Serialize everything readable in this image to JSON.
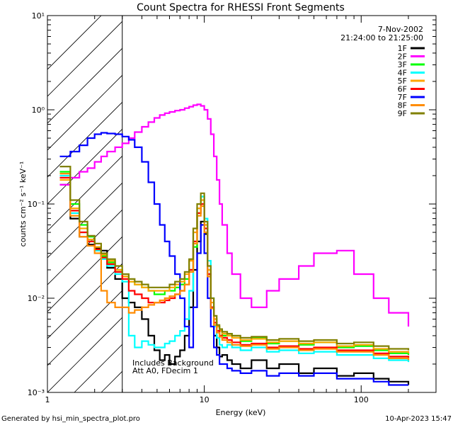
{
  "chart_data": {
    "type": "line",
    "title": "Count Spectra for RHESSI Front Segments",
    "xlabel": "Energy (keV)",
    "ylabel": "counts cm⁻² s⁻¹ keV⁻¹",
    "x_scale": "log",
    "y_scale": "log",
    "xlim": [
      1,
      300
    ],
    "ylim": [
      0.001,
      10
    ],
    "x_ticks": [
      {
        "value": 1,
        "label": "1"
      },
      {
        "value": 10,
        "label": "10"
      },
      {
        "value": 100,
        "label": "100"
      }
    ],
    "y_ticks": [
      {
        "value": 0.001,
        "label": "10⁻³"
      },
      {
        "value": 0.01,
        "label": "10⁻²"
      },
      {
        "value": 0.1,
        "label": "10⁻¹"
      },
      {
        "value": 1,
        "label": "10⁰"
      },
      {
        "value": 10,
        "label": "10¹"
      }
    ],
    "hatched_region_kev": [
      1,
      3
    ],
    "header_lines": [
      "7-Nov-2002",
      "21:24:00 to 21:25:00"
    ],
    "annotations": [
      "Includes Background",
      "Att A0, FDecim 1"
    ],
    "series": [
      {
        "name": "1F",
        "color": "#000000",
        "x": [
          1.2,
          1.4,
          1.6,
          1.8,
          2.0,
          2.2,
          2.4,
          2.7,
          3.0,
          3.3,
          3.6,
          4.0,
          4.4,
          4.8,
          5.2,
          5.6,
          6.0,
          6.5,
          7.0,
          7.5,
          8.0,
          8.5,
          9.0,
          9.5,
          10.0,
          10.5,
          11.0,
          11.5,
          12.0,
          12.5,
          13.0,
          14.0,
          15.0,
          17.0,
          20.0,
          25.0,
          30.0,
          40.0,
          50.0,
          70.0,
          90.0,
          120.0,
          150.0,
          200.0
        ],
        "y": [
          0.16,
          0.07,
          0.045,
          0.037,
          0.034,
          0.032,
          0.021,
          0.016,
          0.01,
          0.009,
          0.008,
          0.006,
          0.004,
          0.0028,
          0.0022,
          0.0025,
          0.002,
          0.0024,
          0.0028,
          0.004,
          0.008,
          0.02,
          0.04,
          0.065,
          0.048,
          0.018,
          0.008,
          0.004,
          0.003,
          0.0024,
          0.0025,
          0.0022,
          0.002,
          0.0018,
          0.0022,
          0.0018,
          0.002,
          0.0016,
          0.0018,
          0.0015,
          0.0016,
          0.0014,
          0.0013,
          0.0012
        ]
      },
      {
        "name": "2F",
        "color": "#ff00ff",
        "x": [
          1.2,
          1.4,
          1.6,
          1.8,
          2.0,
          2.2,
          2.4,
          2.7,
          3.0,
          3.3,
          3.6,
          4.0,
          4.4,
          4.8,
          5.2,
          5.6,
          6.0,
          6.5,
          7.0,
          7.5,
          8.0,
          8.5,
          9.0,
          9.5,
          10.0,
          10.5,
          11.0,
          11.5,
          12.0,
          12.5,
          13.0,
          14.0,
          15.0,
          17.0,
          20.0,
          25.0,
          30.0,
          40.0,
          50.0,
          70.0,
          90.0,
          120.0,
          150.0,
          200.0
        ],
        "y": [
          0.16,
          0.19,
          0.22,
          0.24,
          0.28,
          0.32,
          0.36,
          0.4,
          0.44,
          0.5,
          0.58,
          0.66,
          0.74,
          0.82,
          0.88,
          0.92,
          0.95,
          0.98,
          1.0,
          1.04,
          1.08,
          1.12,
          1.14,
          1.1,
          1.0,
          0.8,
          0.55,
          0.32,
          0.18,
          0.1,
          0.06,
          0.03,
          0.018,
          0.01,
          0.008,
          0.012,
          0.016,
          0.022,
          0.03,
          0.032,
          0.018,
          0.01,
          0.007,
          0.005
        ]
      },
      {
        "name": "3F",
        "color": "#00ff00",
        "x": [
          1.2,
          1.4,
          1.6,
          1.8,
          2.0,
          2.2,
          2.4,
          2.7,
          3.0,
          3.3,
          3.6,
          4.0,
          4.4,
          4.8,
          5.2,
          5.6,
          6.0,
          6.5,
          7.0,
          7.5,
          8.0,
          8.5,
          9.0,
          9.5,
          10.0,
          10.5,
          11.0,
          11.5,
          12.0,
          12.5,
          13.0,
          14.0,
          15.0,
          17.0,
          20.0,
          25.0,
          30.0,
          40.0,
          50.0,
          70.0,
          90.0,
          120.0,
          150.0,
          200.0
        ],
        "y": [
          0.22,
          0.1,
          0.06,
          0.045,
          0.035,
          0.028,
          0.024,
          0.02,
          0.017,
          0.015,
          0.014,
          0.013,
          0.012,
          0.011,
          0.011,
          0.012,
          0.012,
          0.013,
          0.014,
          0.016,
          0.02,
          0.035,
          0.08,
          0.12,
          0.06,
          0.02,
          0.008,
          0.006,
          0.005,
          0.0045,
          0.004,
          0.0042,
          0.0038,
          0.0035,
          0.0038,
          0.0033,
          0.0035,
          0.0032,
          0.0034,
          0.003,
          0.0031,
          0.0028,
          0.0026,
          0.0025
        ]
      },
      {
        "name": "4F",
        "color": "#00ffff",
        "x": [
          1.2,
          1.4,
          1.6,
          1.8,
          2.0,
          2.2,
          2.4,
          2.7,
          3.0,
          3.3,
          3.6,
          4.0,
          4.4,
          4.8,
          5.2,
          5.6,
          6.0,
          6.5,
          7.0,
          7.5,
          8.0,
          8.5,
          9.0,
          9.5,
          10.0,
          10.5,
          11.0,
          11.5,
          12.0,
          12.5,
          13.0,
          14.0,
          15.0,
          17.0,
          20.0,
          25.0,
          30.0,
          40.0,
          50.0,
          70.0,
          90.0,
          120.0,
          150.0,
          200.0
        ],
        "y": [
          0.2,
          0.08,
          0.05,
          0.04,
          0.032,
          0.026,
          0.022,
          0.018,
          0.015,
          0.004,
          0.003,
          0.0035,
          0.0032,
          0.003,
          0.003,
          0.0033,
          0.0035,
          0.004,
          0.0045,
          0.006,
          0.012,
          0.04,
          0.09,
          0.12,
          0.07,
          0.025,
          0.01,
          0.005,
          0.0038,
          0.0032,
          0.003,
          0.0032,
          0.003,
          0.0028,
          0.003,
          0.0027,
          0.0028,
          0.0026,
          0.0027,
          0.0025,
          0.0025,
          0.0023,
          0.0022,
          0.0021
        ]
      },
      {
        "name": "5F",
        "color": "#ffa500",
        "x": [
          1.2,
          1.4,
          1.6,
          1.8,
          2.0,
          2.2,
          2.4,
          2.7,
          3.0,
          3.3,
          3.6,
          4.0,
          4.4,
          4.8,
          5.2,
          5.6,
          6.0,
          6.5,
          7.0,
          7.5,
          8.0,
          8.5,
          9.0,
          9.5,
          10.0,
          10.5,
          11.0,
          11.5,
          12.0,
          12.5,
          13.0,
          14.0,
          15.0,
          17.0,
          20.0,
          25.0,
          30.0,
          40.0,
          50.0,
          70.0,
          90.0,
          120.0,
          150.0,
          200.0
        ],
        "y": [
          0.18,
          0.09,
          0.055,
          0.042,
          0.035,
          0.029,
          0.025,
          0.02,
          0.017,
          0.015,
          0.014,
          0.013,
          0.012,
          0.012,
          0.012,
          0.012,
          0.013,
          0.014,
          0.015,
          0.018,
          0.025,
          0.05,
          0.09,
          0.11,
          0.06,
          0.02,
          0.009,
          0.006,
          0.005,
          0.0045,
          0.0042,
          0.004,
          0.0038,
          0.0036,
          0.0037,
          0.0034,
          0.0035,
          0.0033,
          0.0034,
          0.0031,
          0.0032,
          0.0029,
          0.0027,
          0.0026
        ]
      },
      {
        "name": "6F",
        "color": "#ff0000",
        "x": [
          1.2,
          1.4,
          1.6,
          1.8,
          2.0,
          2.2,
          2.4,
          2.7,
          3.0,
          3.3,
          3.6,
          4.0,
          4.4,
          4.8,
          5.2,
          5.6,
          6.0,
          6.5,
          7.0,
          7.5,
          8.0,
          8.5,
          9.0,
          9.5,
          10.0,
          10.5,
          11.0,
          11.5,
          12.0,
          12.5,
          13.0,
          14.0,
          15.0,
          17.0,
          20.0,
          25.0,
          30.0,
          40.0,
          50.0,
          70.0,
          90.0,
          120.0,
          150.0,
          200.0
        ],
        "y": [
          0.19,
          0.085,
          0.05,
          0.04,
          0.033,
          0.027,
          0.023,
          0.019,
          0.016,
          0.012,
          0.011,
          0.01,
          0.009,
          0.009,
          0.009,
          0.0095,
          0.01,
          0.011,
          0.012,
          0.014,
          0.02,
          0.04,
          0.08,
          0.1,
          0.055,
          0.018,
          0.008,
          0.0055,
          0.0045,
          0.004,
          0.0038,
          0.0036,
          0.0034,
          0.0032,
          0.0033,
          0.003,
          0.0031,
          0.0029,
          0.003,
          0.0028,
          0.0028,
          0.0026,
          0.0024,
          0.0023
        ]
      },
      {
        "name": "7F",
        "color": "#0000ff",
        "x": [
          1.2,
          1.4,
          1.6,
          1.8,
          2.0,
          2.2,
          2.4,
          2.7,
          3.0,
          3.3,
          3.6,
          4.0,
          4.4,
          4.8,
          5.2,
          5.6,
          6.0,
          6.5,
          7.0,
          7.5,
          8.0,
          8.5,
          9.0,
          9.5,
          10.0,
          10.5,
          11.0,
          11.5,
          12.0,
          12.5,
          13.0,
          14.0,
          15.0,
          17.0,
          20.0,
          25.0,
          30.0,
          40.0,
          50.0,
          70.0,
          90.0,
          120.0,
          150.0,
          200.0
        ],
        "y": [
          0.32,
          0.36,
          0.42,
          0.5,
          0.55,
          0.57,
          0.56,
          0.55,
          0.52,
          0.48,
          0.4,
          0.28,
          0.17,
          0.1,
          0.06,
          0.04,
          0.028,
          0.018,
          0.01,
          0.005,
          0.003,
          0.008,
          0.03,
          0.06,
          0.03,
          0.01,
          0.005,
          0.003,
          0.0025,
          0.002,
          0.002,
          0.0018,
          0.0017,
          0.0016,
          0.0017,
          0.0015,
          0.0016,
          0.0015,
          0.0016,
          0.0014,
          0.0014,
          0.0013,
          0.0012,
          0.0012
        ]
      },
      {
        "name": "8F",
        "color": "#ff8c00",
        "x": [
          1.2,
          1.4,
          1.6,
          1.8,
          2.0,
          2.2,
          2.4,
          2.7,
          3.0,
          3.3,
          3.6,
          4.0,
          4.4,
          4.8,
          5.2,
          5.6,
          6.0,
          6.5,
          7.0,
          7.5,
          8.0,
          8.5,
          9.0,
          9.5,
          10.0,
          10.5,
          11.0,
          11.5,
          12.0,
          12.5,
          13.0,
          14.0,
          15.0,
          17.0,
          20.0,
          25.0,
          30.0,
          40.0,
          50.0,
          70.0,
          90.0,
          120.0,
          150.0,
          200.0
        ],
        "y": [
          0.21,
          0.075,
          0.045,
          0.036,
          0.03,
          0.012,
          0.009,
          0.008,
          0.008,
          0.007,
          0.0075,
          0.008,
          0.0085,
          0.009,
          0.0095,
          0.01,
          0.0105,
          0.011,
          0.012,
          0.014,
          0.019,
          0.038,
          0.075,
          0.095,
          0.05,
          0.017,
          0.0078,
          0.0052,
          0.0043,
          0.0039,
          0.0036,
          0.0034,
          0.0032,
          0.0031,
          0.0032,
          0.0029,
          0.003,
          0.0028,
          0.0029,
          0.0027,
          0.0027,
          0.0025,
          0.0023,
          0.0022
        ]
      },
      {
        "name": "9F",
        "color": "#808000",
        "x": [
          1.2,
          1.4,
          1.6,
          1.8,
          2.0,
          2.2,
          2.4,
          2.7,
          3.0,
          3.3,
          3.6,
          4.0,
          4.4,
          4.8,
          5.2,
          5.6,
          6.0,
          6.5,
          7.0,
          7.5,
          8.0,
          8.5,
          9.0,
          9.5,
          10.0,
          10.5,
          11.0,
          11.5,
          12.0,
          12.5,
          13.0,
          14.0,
          15.0,
          17.0,
          20.0,
          25.0,
          30.0,
          40.0,
          50.0,
          70.0,
          90.0,
          120.0,
          150.0,
          200.0
        ],
        "y": [
          0.25,
          0.11,
          0.065,
          0.046,
          0.038,
          0.03,
          0.026,
          0.022,
          0.018,
          0.016,
          0.015,
          0.014,
          0.013,
          0.013,
          0.013,
          0.013,
          0.014,
          0.015,
          0.016,
          0.019,
          0.026,
          0.055,
          0.1,
          0.13,
          0.065,
          0.022,
          0.01,
          0.0065,
          0.0052,
          0.0047,
          0.0044,
          0.0042,
          0.004,
          0.0038,
          0.0039,
          0.0036,
          0.0037,
          0.0035,
          0.0036,
          0.0033,
          0.0034,
          0.0031,
          0.0029,
          0.0028
        ]
      }
    ]
  },
  "footer": {
    "generated_by": "Generated by  hsi_min_spectra_plot.pro",
    "timestamp": "10-Apr-2023 15:47"
  }
}
